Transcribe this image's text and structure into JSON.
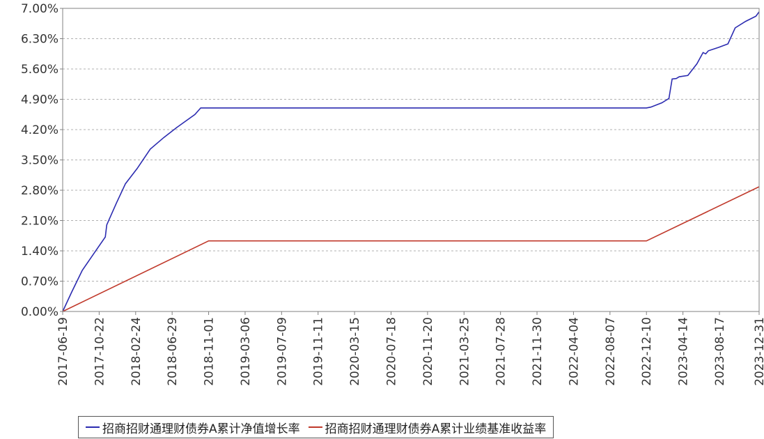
{
  "chart_data": {
    "type": "line",
    "y_ticks": [
      "0.00%",
      "0.70%",
      "1.40%",
      "2.10%",
      "2.80%",
      "3.50%",
      "4.20%",
      "4.90%",
      "5.60%",
      "6.30%",
      "7.00%"
    ],
    "ylim": [
      0,
      7.0
    ],
    "x_ticks": [
      "2017-06-19",
      "2017-10-22",
      "2018-02-24",
      "2018-06-29",
      "2018-11-01",
      "2019-03-06",
      "2019-07-09",
      "2019-11-11",
      "2020-03-15",
      "2020-07-18",
      "2020-11-20",
      "2021-03-25",
      "2021-07-28",
      "2021-11-30",
      "2022-04-04",
      "2022-08-07",
      "2022-12-10",
      "2023-04-14",
      "2023-08-17",
      "2023-12-31"
    ],
    "grid": true,
    "legend_position": "bottom",
    "series": [
      {
        "name": "招商招财通理财债券A累计净值增长率",
        "color": "#2b2bb0",
        "points": [
          [
            "2017-06-19",
            0.0
          ],
          [
            "2017-07-20",
            0.45
          ],
          [
            "2017-08-25",
            0.95
          ],
          [
            "2017-10-05",
            1.35
          ],
          [
            "2017-11-12",
            1.72
          ],
          [
            "2017-11-17",
            2.0
          ],
          [
            "2017-12-20",
            2.5
          ],
          [
            "2018-01-20",
            2.95
          ],
          [
            "2018-03-01",
            3.3
          ],
          [
            "2018-04-15",
            3.75
          ],
          [
            "2018-06-01",
            4.02
          ],
          [
            "2018-07-15",
            4.25
          ],
          [
            "2018-09-15",
            4.55
          ],
          [
            "2018-10-05",
            4.7
          ],
          [
            "2022-12-10",
            4.7
          ],
          [
            "2022-12-25",
            4.72
          ],
          [
            "2023-02-01",
            4.82
          ],
          [
            "2023-02-25",
            4.92
          ],
          [
            "2023-03-08",
            5.37
          ],
          [
            "2023-03-22",
            5.38
          ],
          [
            "2023-04-01",
            5.42
          ],
          [
            "2023-05-01",
            5.45
          ],
          [
            "2023-06-01",
            5.72
          ],
          [
            "2023-06-22",
            5.98
          ],
          [
            "2023-07-01",
            5.95
          ],
          [
            "2023-07-10",
            6.02
          ],
          [
            "2023-08-15",
            6.1
          ],
          [
            "2023-09-15",
            6.18
          ],
          [
            "2023-10-10",
            6.55
          ],
          [
            "2023-11-15",
            6.7
          ],
          [
            "2023-12-20",
            6.82
          ],
          [
            "2023-12-31",
            6.92
          ]
        ]
      },
      {
        "name": "招商招财通理财债券A累计业绩基准收益率",
        "color": "#c0392b",
        "points": [
          [
            "2017-06-19",
            0.0
          ],
          [
            "2018-11-01",
            1.63
          ],
          [
            "2022-12-10",
            1.63
          ],
          [
            "2023-12-31",
            2.88
          ]
        ]
      }
    ]
  }
}
